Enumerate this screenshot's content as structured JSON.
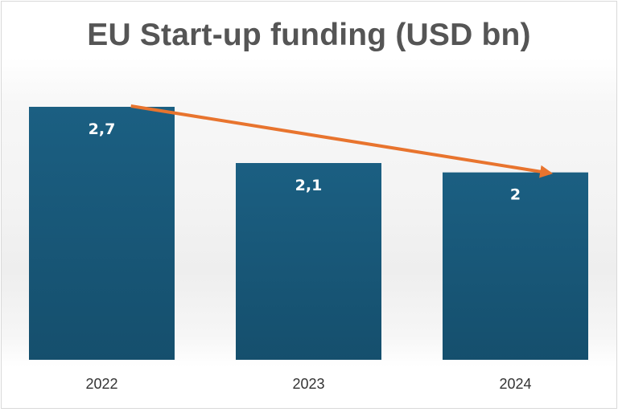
{
  "chart_data": {
    "type": "bar",
    "title": "EU Start-up funding (USD bn)",
    "categories": [
      "2022",
      "2023",
      "2024"
    ],
    "values": [
      2.7,
      2.1,
      2.0
    ],
    "data_labels": [
      "2,7",
      "2,1",
      "2"
    ],
    "xlabel": "",
    "ylabel": "",
    "ylim": [
      0,
      2.7
    ],
    "grid": false,
    "legend": "none",
    "trend_arrow": {
      "from": "2022",
      "to": "2024"
    },
    "colors": {
      "bar": "#1b5f82",
      "bar_dark": "#154f6d",
      "arrow": "#e8742e"
    }
  }
}
